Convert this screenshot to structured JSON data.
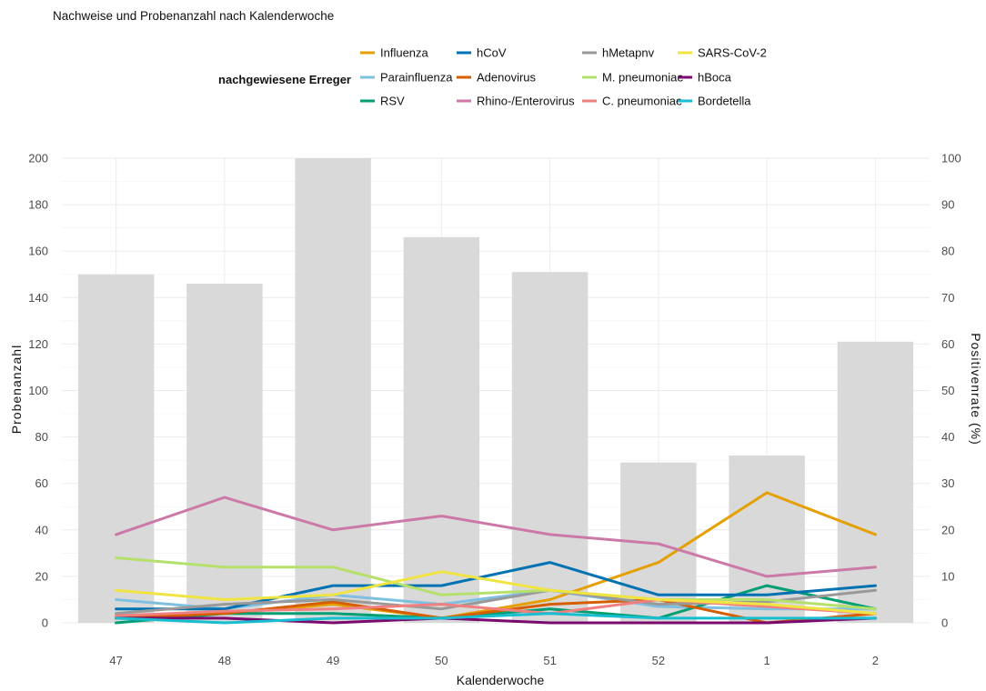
{
  "chart_data": {
    "type": "bar",
    "title": "Nachweise und Probenanzahl nach Kalenderwoche",
    "legend_title": "nachgewiesene Erreger",
    "legend_placement": "top",
    "xlabel": "Kalenderwoche",
    "ylabel_left": "Probenanzahl",
    "ylabel_right": "Positivenrate (%)",
    "categories": [
      "47",
      "48",
      "49",
      "50",
      "51",
      "52",
      "1",
      "2"
    ],
    "ylim_left": [
      0,
      200
    ],
    "yticks_left": [
      0,
      20,
      40,
      60,
      80,
      100,
      120,
      140,
      160,
      180,
      200
    ],
    "ylim_right": [
      0,
      100
    ],
    "yticks_right": [
      0,
      10,
      20,
      30,
      40,
      50,
      60,
      70,
      80,
      90,
      100
    ],
    "grid": true,
    "bar_color": "#d9d9d9",
    "bars": [
      150,
      146,
      200,
      166,
      151,
      69,
      72,
      121
    ],
    "series": [
      {
        "name": "Influenza",
        "color": "#E69F00",
        "values": [
          1.0,
          2.0,
          4.0,
          1.0,
          5.0,
          13.0,
          28.0,
          19.0
        ]
      },
      {
        "name": "Parainfluenza",
        "color": "#7FBFDF",
        "values": [
          5.0,
          3.0,
          6.0,
          4.0,
          7.0,
          3.5,
          3.0,
          3.0
        ]
      },
      {
        "name": "RSV",
        "color": "#009E73",
        "values": [
          0.0,
          2.0,
          2.0,
          1.0,
          3.0,
          1.0,
          8.0,
          3.0
        ]
      },
      {
        "name": "hCoV",
        "color": "#0072B2",
        "values": [
          3.0,
          3.0,
          8.0,
          8.0,
          13.0,
          6.0,
          6.0,
          8.0
        ]
      },
      {
        "name": "Adenovirus",
        "color": "#D55E00",
        "values": [
          1.0,
          2.0,
          4.5,
          1.0,
          4.0,
          5.0,
          0.0,
          2.0
        ]
      },
      {
        "name": "Rhino-/Enterovirus",
        "color": "#CC79A7",
        "values": [
          19.0,
          27.0,
          20.0,
          23.0,
          19.0,
          17.0,
          10.0,
          12.0
        ]
      },
      {
        "name": "hMetapnv",
        "color": "#999999",
        "values": [
          2.0,
          4.0,
          5.0,
          3.0,
          7.0,
          4.0,
          4.5,
          7.0
        ]
      },
      {
        "name": "M. pneumoniae",
        "color": "#B5E06B",
        "values": [
          14.0,
          12.0,
          12.0,
          6.0,
          7.0,
          5.0,
          5.0,
          3.0
        ]
      },
      {
        "name": "C. pneumoniae",
        "color": "#F08080",
        "values": [
          1.5,
          2.5,
          3.0,
          4.0,
          2.0,
          5.0,
          3.5,
          2.0
        ]
      },
      {
        "name": "SARS-CoV-2",
        "color": "#F0E442",
        "values": [
          7.0,
          5.0,
          6.0,
          11.0,
          7.0,
          5.0,
          4.0,
          2.0
        ]
      },
      {
        "name": "hBoca",
        "color": "#7B0A6E",
        "values": [
          1.0,
          1.0,
          0.0,
          1.0,
          0.0,
          0.0,
          0.0,
          1.0
        ]
      },
      {
        "name": "Bordetella",
        "color": "#17BECF",
        "values": [
          1.0,
          0.0,
          1.0,
          1.0,
          2.0,
          1.0,
          1.0,
          1.0
        ]
      }
    ]
  }
}
